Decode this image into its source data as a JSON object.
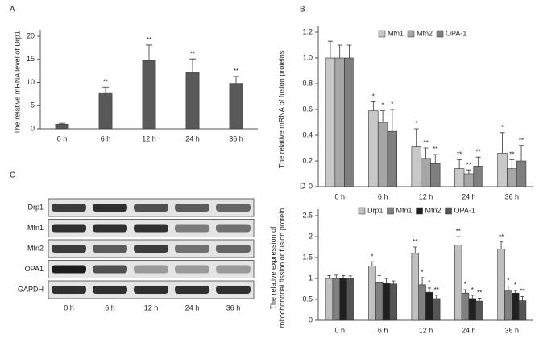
{
  "chart_data": [
    {
      "type": "bar",
      "panel": "A",
      "ylabel": [
        "The relative mRNA level of Drp1"
      ],
      "categories": [
        "0 h",
        "6 h",
        "12 h",
        "24 h",
        "36 h"
      ],
      "values": [
        1,
        7.8,
        14.8,
        12.2,
        9.8
      ],
      "errors": [
        0.2,
        1.2,
        3.3,
        2.9,
        1.5
      ],
      "significance": [
        null,
        "**",
        "**",
        "**",
        "**"
      ],
      "color": "#595959",
      "ylim": [
        0,
        20
      ],
      "yticks": [
        0,
        5,
        10,
        15,
        20
      ]
    },
    {
      "type": "bar",
      "panel": "B",
      "ylabel": [
        "The relative mRNA of fusion proteins"
      ],
      "categories": [
        "0 h",
        "6 h",
        "12 h",
        "24 h",
        "36 h"
      ],
      "series": [
        {
          "name": "Mfn1",
          "color": "#c8c8c8",
          "values": [
            1.0,
            0.59,
            0.31,
            0.14,
            0.26
          ],
          "errors": [
            0.13,
            0.07,
            0.14,
            0.07,
            0.16
          ],
          "significance": [
            null,
            "*",
            "*",
            "**",
            "*"
          ]
        },
        {
          "name": "Mfn2",
          "color": "#a6a6a6",
          "values": [
            1.0,
            0.5,
            0.22,
            0.1,
            0.14
          ],
          "errors": [
            0.1,
            0.09,
            0.08,
            0.03,
            0.07
          ],
          "significance": [
            null,
            "*",
            "**",
            "**",
            "**"
          ]
        },
        {
          "name": "OPA-1",
          "color": "#7f7f7f",
          "values": [
            1.0,
            0.43,
            0.18,
            0.16,
            0.2
          ],
          "errors": [
            0.1,
            0.17,
            0.07,
            0.07,
            0.12
          ],
          "significance": [
            null,
            "*",
            "**",
            "**",
            "**"
          ]
        }
      ],
      "ylim": [
        0,
        1.2
      ],
      "yticks": [
        0,
        0.2,
        0.4,
        0.6,
        0.8,
        {
          "value": 1,
          "label": "1.0"
        },
        1.2
      ]
    },
    {
      "type": "bar",
      "panel": "D",
      "ylabel": [
        "The relative expression of",
        "mitochondrial fission or fusion protein"
      ],
      "categories": [
        "0 h",
        "6 h",
        "12 h",
        "24 h",
        "36 h"
      ],
      "series": [
        {
          "name": "Drp1",
          "color": "#c0c0c0",
          "values": [
            1.0,
            1.3,
            1.6,
            1.8,
            1.7
          ],
          "errors": [
            0.07,
            0.1,
            0.15,
            0.2,
            0.17
          ],
          "significance": [
            null,
            "*",
            "**",
            "**",
            "**"
          ]
        },
        {
          "name": "Mfn1",
          "color": "#808080",
          "values": [
            1.0,
            0.9,
            0.85,
            0.65,
            0.7
          ],
          "errors": [
            0.08,
            0.17,
            0.17,
            0.08,
            0.12
          ],
          "significance": [
            null,
            null,
            "*",
            "*",
            "*"
          ]
        },
        {
          "name": "Mfn2",
          "color": "#202020",
          "values": [
            1.0,
            0.88,
            0.67,
            0.52,
            0.65
          ],
          "errors": [
            0.07,
            0.12,
            0.1,
            0.08,
            0.06
          ],
          "significance": [
            null,
            null,
            "*",
            "*",
            "*"
          ]
        },
        {
          "name": "OPA-1",
          "color": "#555555",
          "values": [
            1.0,
            0.87,
            0.52,
            0.46,
            0.47
          ],
          "errors": [
            0.06,
            0.07,
            0.08,
            0.07,
            0.1
          ],
          "significance": [
            null,
            null,
            "**",
            "**",
            "**"
          ]
        }
      ],
      "ylim": [
        0,
        2.5
      ],
      "yticks": [
        0,
        0.5,
        1,
        1.5,
        2,
        2.5
      ]
    }
  ],
  "blot": {
    "panel": "C",
    "rows": [
      "Drp1",
      "Mfn1",
      "Mfn2",
      "OPA1",
      "GAPDH"
    ],
    "columns": [
      "0 h",
      "6 h",
      "12 h",
      "24 h",
      "36 h"
    ]
  }
}
